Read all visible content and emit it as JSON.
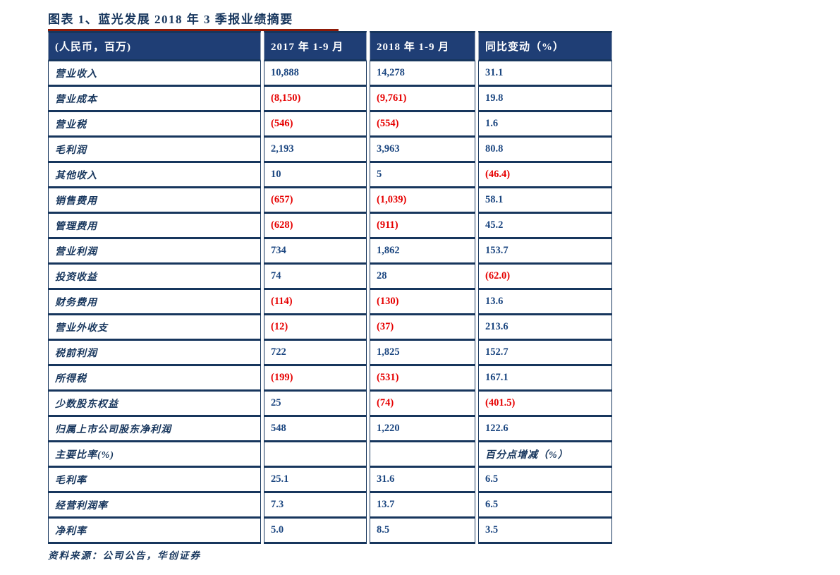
{
  "title": "图表 1、蓝光发展 2018 年 3 季报业绩摘要",
  "source": "资料来源：公司公告，华创证券",
  "colors": {
    "navy_text": "#17365D",
    "value_text": "#1B4680",
    "negative_red": "#E60000",
    "header_bg": "#1F3E75",
    "title_underline": "#8E1A08"
  },
  "table": {
    "headers": [
      "(人民币，百万)",
      "2017 年 1-9 月",
      "2018 年 1-9 月",
      "同比变动（%）"
    ],
    "rows": [
      {
        "label": "营业收入",
        "y2017": "10,888",
        "y2018": "14,278",
        "yoy": "31.1"
      },
      {
        "label": "营业成本",
        "y2017": "(8,150)",
        "y2018": "(9,761)",
        "yoy": "19.8"
      },
      {
        "label": "营业税",
        "y2017": "(546)",
        "y2018": "(554)",
        "yoy": "1.6"
      },
      {
        "label": "毛利润",
        "y2017": "2,193",
        "y2018": "3,963",
        "yoy": "80.8"
      },
      {
        "label": "其他收入",
        "y2017": "10",
        "y2018": "5",
        "yoy": "(46.4)"
      },
      {
        "label": "销售费用",
        "y2017": "(657)",
        "y2018": "(1,039)",
        "yoy": "58.1"
      },
      {
        "label": "管理费用",
        "y2017": "(628)",
        "y2018": "(911)",
        "yoy": "45.2"
      },
      {
        "label": "营业利润",
        "y2017": "734",
        "y2018": "1,862",
        "yoy": "153.7"
      },
      {
        "label": "投资收益",
        "y2017": "74",
        "y2018": "28",
        "yoy": "(62.0)"
      },
      {
        "label": "财务费用",
        "y2017": "(114)",
        "y2018": "(130)",
        "yoy": "13.6"
      },
      {
        "label": "营业外收支",
        "y2017": "(12)",
        "y2018": "(37)",
        "yoy": "213.6"
      },
      {
        "label": "税前利润",
        "y2017": "722",
        "y2018": "1,825",
        "yoy": "152.7"
      },
      {
        "label": "所得税",
        "y2017": "(199)",
        "y2018": "(531)",
        "yoy": "167.1"
      },
      {
        "label": "少数股东权益",
        "y2017": "25",
        "y2018": "(74)",
        "yoy": "(401.5)"
      },
      {
        "label": "归属上市公司股东净利润",
        "y2017": "548",
        "y2018": "1,220",
        "yoy": "122.6"
      },
      {
        "label": "主要比率(%)",
        "y2017": "",
        "y2018": "",
        "yoy": "百分点增减（%）",
        "section": true
      },
      {
        "label": "毛利率",
        "y2017": "25.1",
        "y2018": "31.6",
        "yoy": "6.5"
      },
      {
        "label": "经营利润率",
        "y2017": "7.3",
        "y2018": "13.7",
        "yoy": "6.5"
      },
      {
        "label": "净利率",
        "y2017": "5.0",
        "y2018": "8.5",
        "yoy": "3.5"
      }
    ]
  }
}
